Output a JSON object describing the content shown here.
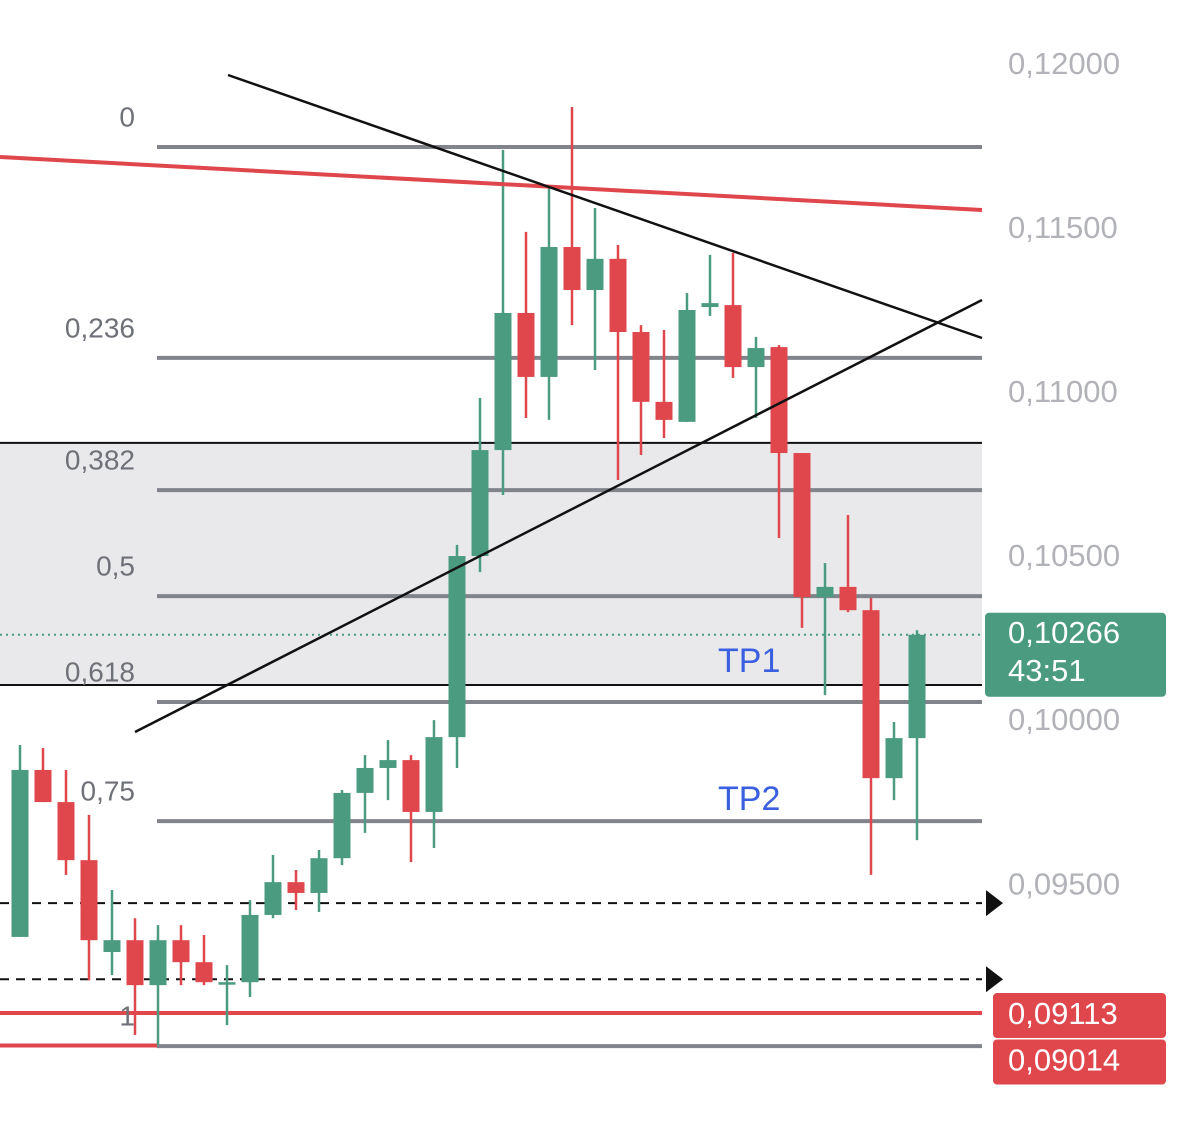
{
  "chart_data": {
    "type": "candlestick",
    "up_color": "#4a9b80",
    "down_color": "#e0474c",
    "ylim": [
      0.08729,
      0.12201
    ],
    "yticks": [
      {
        "value": 0.12,
        "label": "0,12000"
      },
      {
        "value": 0.115,
        "label": "0,11500"
      },
      {
        "value": 0.11,
        "label": "0,11000"
      },
      {
        "value": 0.105,
        "label": "0,10500"
      },
      {
        "value": 0.1,
        "label": "0,10000"
      },
      {
        "value": 0.095,
        "label": "0,09500"
      }
    ],
    "candles": {
      "open": [
        0.09345,
        0.09854,
        0.09756,
        0.09579,
        0.09299,
        0.09335,
        0.09198,
        0.09335,
        0.09268,
        0.09207,
        0.09207,
        0.09412,
        0.09512,
        0.09479,
        0.09585,
        0.09784,
        0.0986,
        0.09884,
        0.09726,
        0.09954,
        0.10506,
        0.10829,
        0.11247,
        0.11052,
        0.11448,
        0.11317,
        0.11412,
        0.11189,
        0.10976,
        0.10915,
        0.11265,
        0.11271,
        0.11082,
        0.11143,
        0.1082,
        0.10381,
        0.10412,
        0.10341,
        0.09829,
        0.09951
      ],
      "high": [
        0.0993,
        0.09921,
        0.09854,
        0.09717,
        0.09488,
        0.09402,
        0.09381,
        0.09381,
        0.09351,
        0.09259,
        0.09457,
        0.09595,
        0.09549,
        0.0961,
        0.09793,
        0.09899,
        0.09945,
        0.09899,
        0.10006,
        0.1054,
        0.10988,
        0.11744,
        0.11494,
        0.11637,
        0.11875,
        0.11567,
        0.11454,
        0.1121,
        0.11195,
        0.11308,
        0.11424,
        0.1143,
        0.11174,
        0.11149,
        0.1082,
        0.10485,
        0.10631,
        0.10378,
        0.1,
        0.1028
      ],
      "low": [
        0.09345,
        0.09756,
        0.09534,
        0.09213,
        0.09229,
        0.09046,
        0.09015,
        0.09198,
        0.09198,
        0.09076,
        0.09162,
        0.09402,
        0.09427,
        0.09421,
        0.09564,
        0.09662,
        0.09762,
        0.09573,
        0.09616,
        0.0986,
        0.10457,
        0.10692,
        0.10927,
        0.10921,
        0.1121,
        0.11073,
        0.10738,
        0.10814,
        0.10866,
        0.10915,
        0.11238,
        0.11049,
        0.10927,
        0.10561,
        0.10287,
        0.10082,
        0.10335,
        0.09534,
        0.09762,
        0.0964
      ],
      "close": [
        0.09854,
        0.09756,
        0.09579,
        0.09335,
        0.09335,
        0.09198,
        0.09335,
        0.09268,
        0.09207,
        0.09207,
        0.09412,
        0.09512,
        0.09479,
        0.09585,
        0.09784,
        0.0986,
        0.09884,
        0.09726,
        0.09954,
        0.10506,
        0.10829,
        0.11247,
        0.11052,
        0.11448,
        0.11317,
        0.11412,
        0.11189,
        0.10976,
        0.10921,
        0.11256,
        0.11277,
        0.11082,
        0.1114,
        0.1082,
        0.10381,
        0.10412,
        0.10341,
        0.09829,
        0.09951,
        0.10266
      ]
    },
    "fib_levels": [
      {
        "label": "0",
        "value": 0.11753
      },
      {
        "label": "0,236",
        "value": 0.1111
      },
      {
        "label": "0,382",
        "value": 0.10707
      },
      {
        "label": "0,5",
        "value": 0.10384
      },
      {
        "label": "0,618",
        "value": 0.10061
      },
      {
        "label": "0,75",
        "value": 0.09698
      },
      {
        "label": "1",
        "value": 0.09012
      }
    ],
    "fib_color": "#82848c",
    "zone": [
      0.10851,
      0.10113
    ],
    "dashed_levels": [
      0.09448,
      0.09216
    ],
    "price_tags": [
      {
        "value": 0.10266,
        "label": "0,10266",
        "countdown": "43:51",
        "color": "#4a9b80"
      },
      {
        "value": 0.09113,
        "label": "0,09113",
        "color": "#e0474c"
      },
      {
        "value": 0.09014,
        "label": "0,09014",
        "color": "#e0474c"
      }
    ],
    "annotations": [
      {
        "text": "TP1",
        "value": 0.1018
      },
      {
        "text": "TP2",
        "value": 0.0976
      }
    ]
  }
}
